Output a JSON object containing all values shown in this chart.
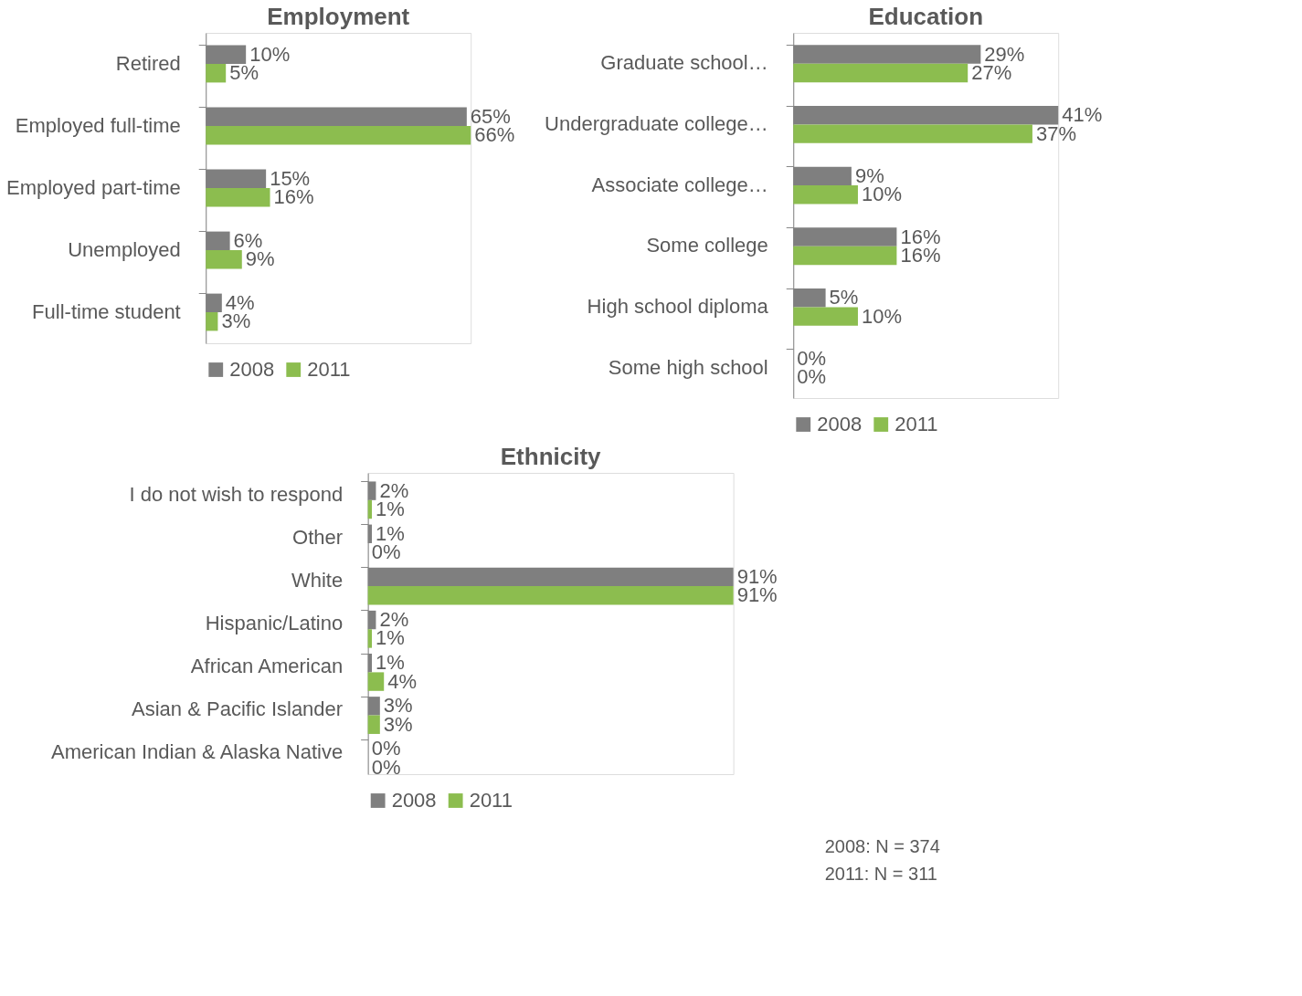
{
  "chart_data": [
    {
      "type": "bar",
      "orientation": "horizontal",
      "title": "Employment",
      "categories": [
        "Retired",
        "Employed full-time",
        "Employed part-time",
        "Unemployed",
        "Full-time student"
      ],
      "series": [
        {
          "name": "2008",
          "color": "#7f7f7f",
          "values": [
            10,
            65,
            15,
            6,
            4
          ],
          "value_labels": [
            "10%",
            "65%",
            "15%",
            "6%",
            "4%"
          ]
        },
        {
          "name": "2011",
          "color": "#8cbd4f",
          "values": [
            5,
            66,
            16,
            9,
            3
          ],
          "value_labels": [
            "5%",
            "66%",
            "16%",
            "9%",
            "3%"
          ]
        }
      ],
      "legend": "bottom",
      "tick_labels": "y"
    },
    {
      "type": "bar",
      "orientation": "horizontal",
      "title": "Education",
      "categories": [
        "Graduate school…",
        "Undergraduate college…",
        "Associate college…",
        "Some college",
        "High school diploma",
        "Some high school"
      ],
      "series": [
        {
          "name": "2008",
          "color": "#7f7f7f",
          "values": [
            29,
            41,
            9,
            16,
            5,
            0
          ],
          "value_labels": [
            "29%",
            "41%",
            "9%",
            "16%",
            "5%",
            "0%"
          ]
        },
        {
          "name": "2011",
          "color": "#8cbd4f",
          "values": [
            27,
            37,
            10,
            16,
            10,
            0
          ],
          "value_labels": [
            "27%",
            "37%",
            "10%",
            "16%",
            "10%",
            "0%"
          ]
        }
      ],
      "legend": "bottom",
      "tick_labels": "y"
    },
    {
      "type": "bar",
      "orientation": "horizontal",
      "title": "Ethnicity",
      "categories": [
        "I do not wish to respond",
        "Other",
        "White",
        "Hispanic/Latino",
        "African American",
        "Asian & Pacific Islander",
        "American Indian & Alaska Native"
      ],
      "series": [
        {
          "name": "2008",
          "color": "#7f7f7f",
          "values": [
            2,
            1,
            91,
            2,
            1,
            3,
            0
          ],
          "value_labels": [
            "2%",
            "1%",
            "91%",
            "2%",
            "1%",
            "3%",
            "0%"
          ]
        },
        {
          "name": "2011",
          "color": "#8cbd4f",
          "values": [
            1,
            0,
            91,
            1,
            4,
            3,
            0
          ],
          "value_labels": [
            "1%",
            "0%",
            "91%",
            "1%",
            "4%",
            "3%",
            "0%"
          ]
        }
      ],
      "legend": "bottom",
      "tick_labels": "y",
      "annotations": [
        "2008: N = 374",
        "2011: N = 311"
      ]
    }
  ]
}
